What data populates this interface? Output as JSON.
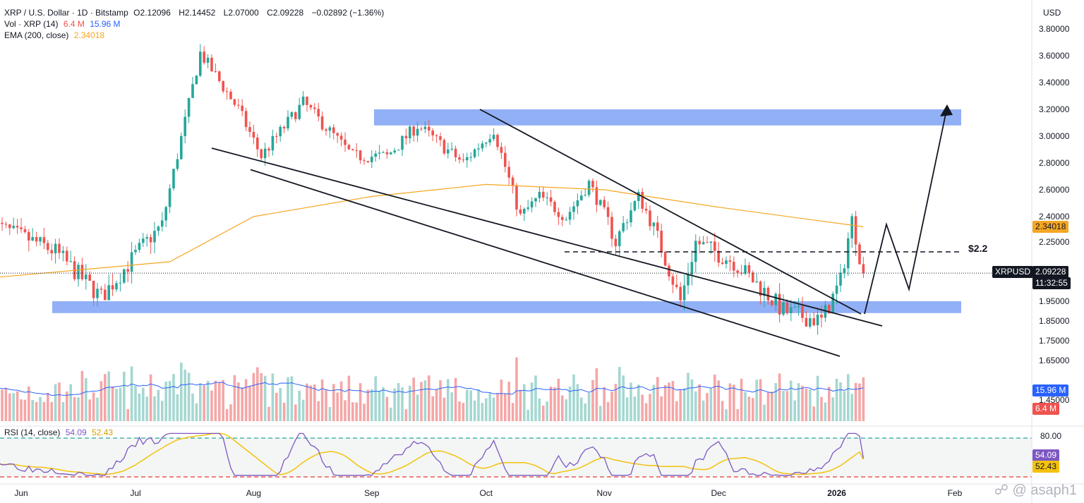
{
  "header": {
    "symbol_line": "XRP / U.S. Dollar · 1D · Bitstamp",
    "open_label": "O",
    "open": "2.12096",
    "high_label": "H",
    "high": "2.14452",
    "low_label": "L",
    "low": "2.07000",
    "close_label": "C",
    "close": "2.09228",
    "change": "−0.02892 (−1.36%)",
    "vol_label": "Vol · XRP (14)",
    "vol_a": "6.4 M",
    "vol_b": "15.96 M",
    "ema_label": "EMA (200, close)",
    "ema_value": "2.34018",
    "rsi_label": "RSI (14, close)",
    "rsi_a": "54.09",
    "rsi_b": "52.43"
  },
  "colors": {
    "up": "#26a69a",
    "down": "#ef5350",
    "vol_up": "#a5d7d1",
    "vol_down": "#f5a6a6",
    "ema": "#f5a623",
    "zone": "#7ea2f5",
    "vol_ma": "#2962ff",
    "rsi": "#7e57c2",
    "rsi_ma": "#f4c20d",
    "rsi_band": "#26a69a",
    "rsi_low": "#e53935"
  },
  "labels": {
    "currency": "USD",
    "level_label": "$2.2",
    "ema_tag": "2.34018",
    "symbol_tag": "XRPUSD",
    "price_tag": "2.09228",
    "countdown": "11:32:55",
    "vol_tag_a": "15.96 M",
    "vol_tag_b": "6.4 M",
    "rsi_tag_a": "54.09",
    "rsi_tag_b": "52.43",
    "rsi_80": "80.00",
    "watermark": "asaph1"
  },
  "chart_data": {
    "type": "candlestick",
    "price_ticks": [
      1.45,
      1.65,
      1.75,
      1.85,
      1.95,
      2.25,
      2.4,
      2.6,
      2.8,
      3.0,
      3.2,
      3.4,
      3.6,
      3.8
    ],
    "price_tick_labels": [
      "1.45000",
      "1.65000",
      "1.75000",
      "1.85000",
      "1.95000",
      "2.25000",
      "2.40000",
      "2.60000",
      "2.80000",
      "3.00000",
      "3.20000",
      "3.40000",
      "3.60000",
      "3.80000"
    ],
    "x_ticks": [
      "Jun",
      "Jul",
      "Aug",
      "Sep",
      "Oct",
      "Nov",
      "Dec",
      "2026",
      "Feb"
    ],
    "price_anchors": [
      {
        "date": "2025-05-25",
        "price": 2.35
      },
      {
        "date": "2025-06-10",
        "price": 2.2
      },
      {
        "date": "2025-06-22",
        "price": 1.97
      },
      {
        "date": "2025-07-08",
        "price": 2.35
      },
      {
        "date": "2025-07-18",
        "price": 3.62
      },
      {
        "date": "2025-07-28",
        "price": 3.2
      },
      {
        "date": "2025-08-03",
        "price": 2.85
      },
      {
        "date": "2025-08-14",
        "price": 3.25
      },
      {
        "date": "2025-08-27",
        "price": 2.85
      },
      {
        "date": "2025-09-05",
        "price": 2.85
      },
      {
        "date": "2025-09-13",
        "price": 3.08
      },
      {
        "date": "2025-09-25",
        "price": 2.8
      },
      {
        "date": "2025-10-03",
        "price": 3.05
      },
      {
        "date": "2025-10-10",
        "price": 2.4
      },
      {
        "date": "2025-10-15",
        "price": 2.55
      },
      {
        "date": "2025-10-22",
        "price": 2.4
      },
      {
        "date": "2025-10-28",
        "price": 2.65
      },
      {
        "date": "2025-11-04",
        "price": 2.25
      },
      {
        "date": "2025-11-10",
        "price": 2.55
      },
      {
        "date": "2025-11-21",
        "price": 1.95
      },
      {
        "date": "2025-11-25",
        "price": 2.25
      },
      {
        "date": "2025-12-05",
        "price": 2.15
      },
      {
        "date": "2025-12-13",
        "price": 2.0
      },
      {
        "date": "2025-12-18",
        "price": 1.9
      },
      {
        "date": "2025-12-28",
        "price": 1.85
      },
      {
        "date": "2026-01-02",
        "price": 2.05
      },
      {
        "date": "2026-01-05",
        "price": 2.38
      },
      {
        "date": "2026-01-08",
        "price": 2.09
      }
    ],
    "ema200_anchors": [
      {
        "date": "2025-05-25",
        "price": 2.07
      },
      {
        "date": "2025-07-10",
        "price": 2.15
      },
      {
        "date": "2025-08-01",
        "price": 2.4
      },
      {
        "date": "2025-09-01",
        "price": 2.55
      },
      {
        "date": "2025-10-01",
        "price": 2.64
      },
      {
        "date": "2025-11-01",
        "price": 2.6
      },
      {
        "date": "2025-12-01",
        "price": 2.47
      },
      {
        "date": "2026-01-08",
        "price": 2.34
      }
    ],
    "support_zone": [
      1.89,
      1.95
    ],
    "resistance_zone": [
      3.08,
      3.2
    ],
    "level": 2.2,
    "last_price": 2.09228,
    "ema_last": 2.34018,
    "rsi_levels": [
      30,
      80
    ],
    "rsi_last": 54.09,
    "rsi_ma_last": 52.43,
    "volume_last": 6.4,
    "volume_ma_last": 15.96
  }
}
